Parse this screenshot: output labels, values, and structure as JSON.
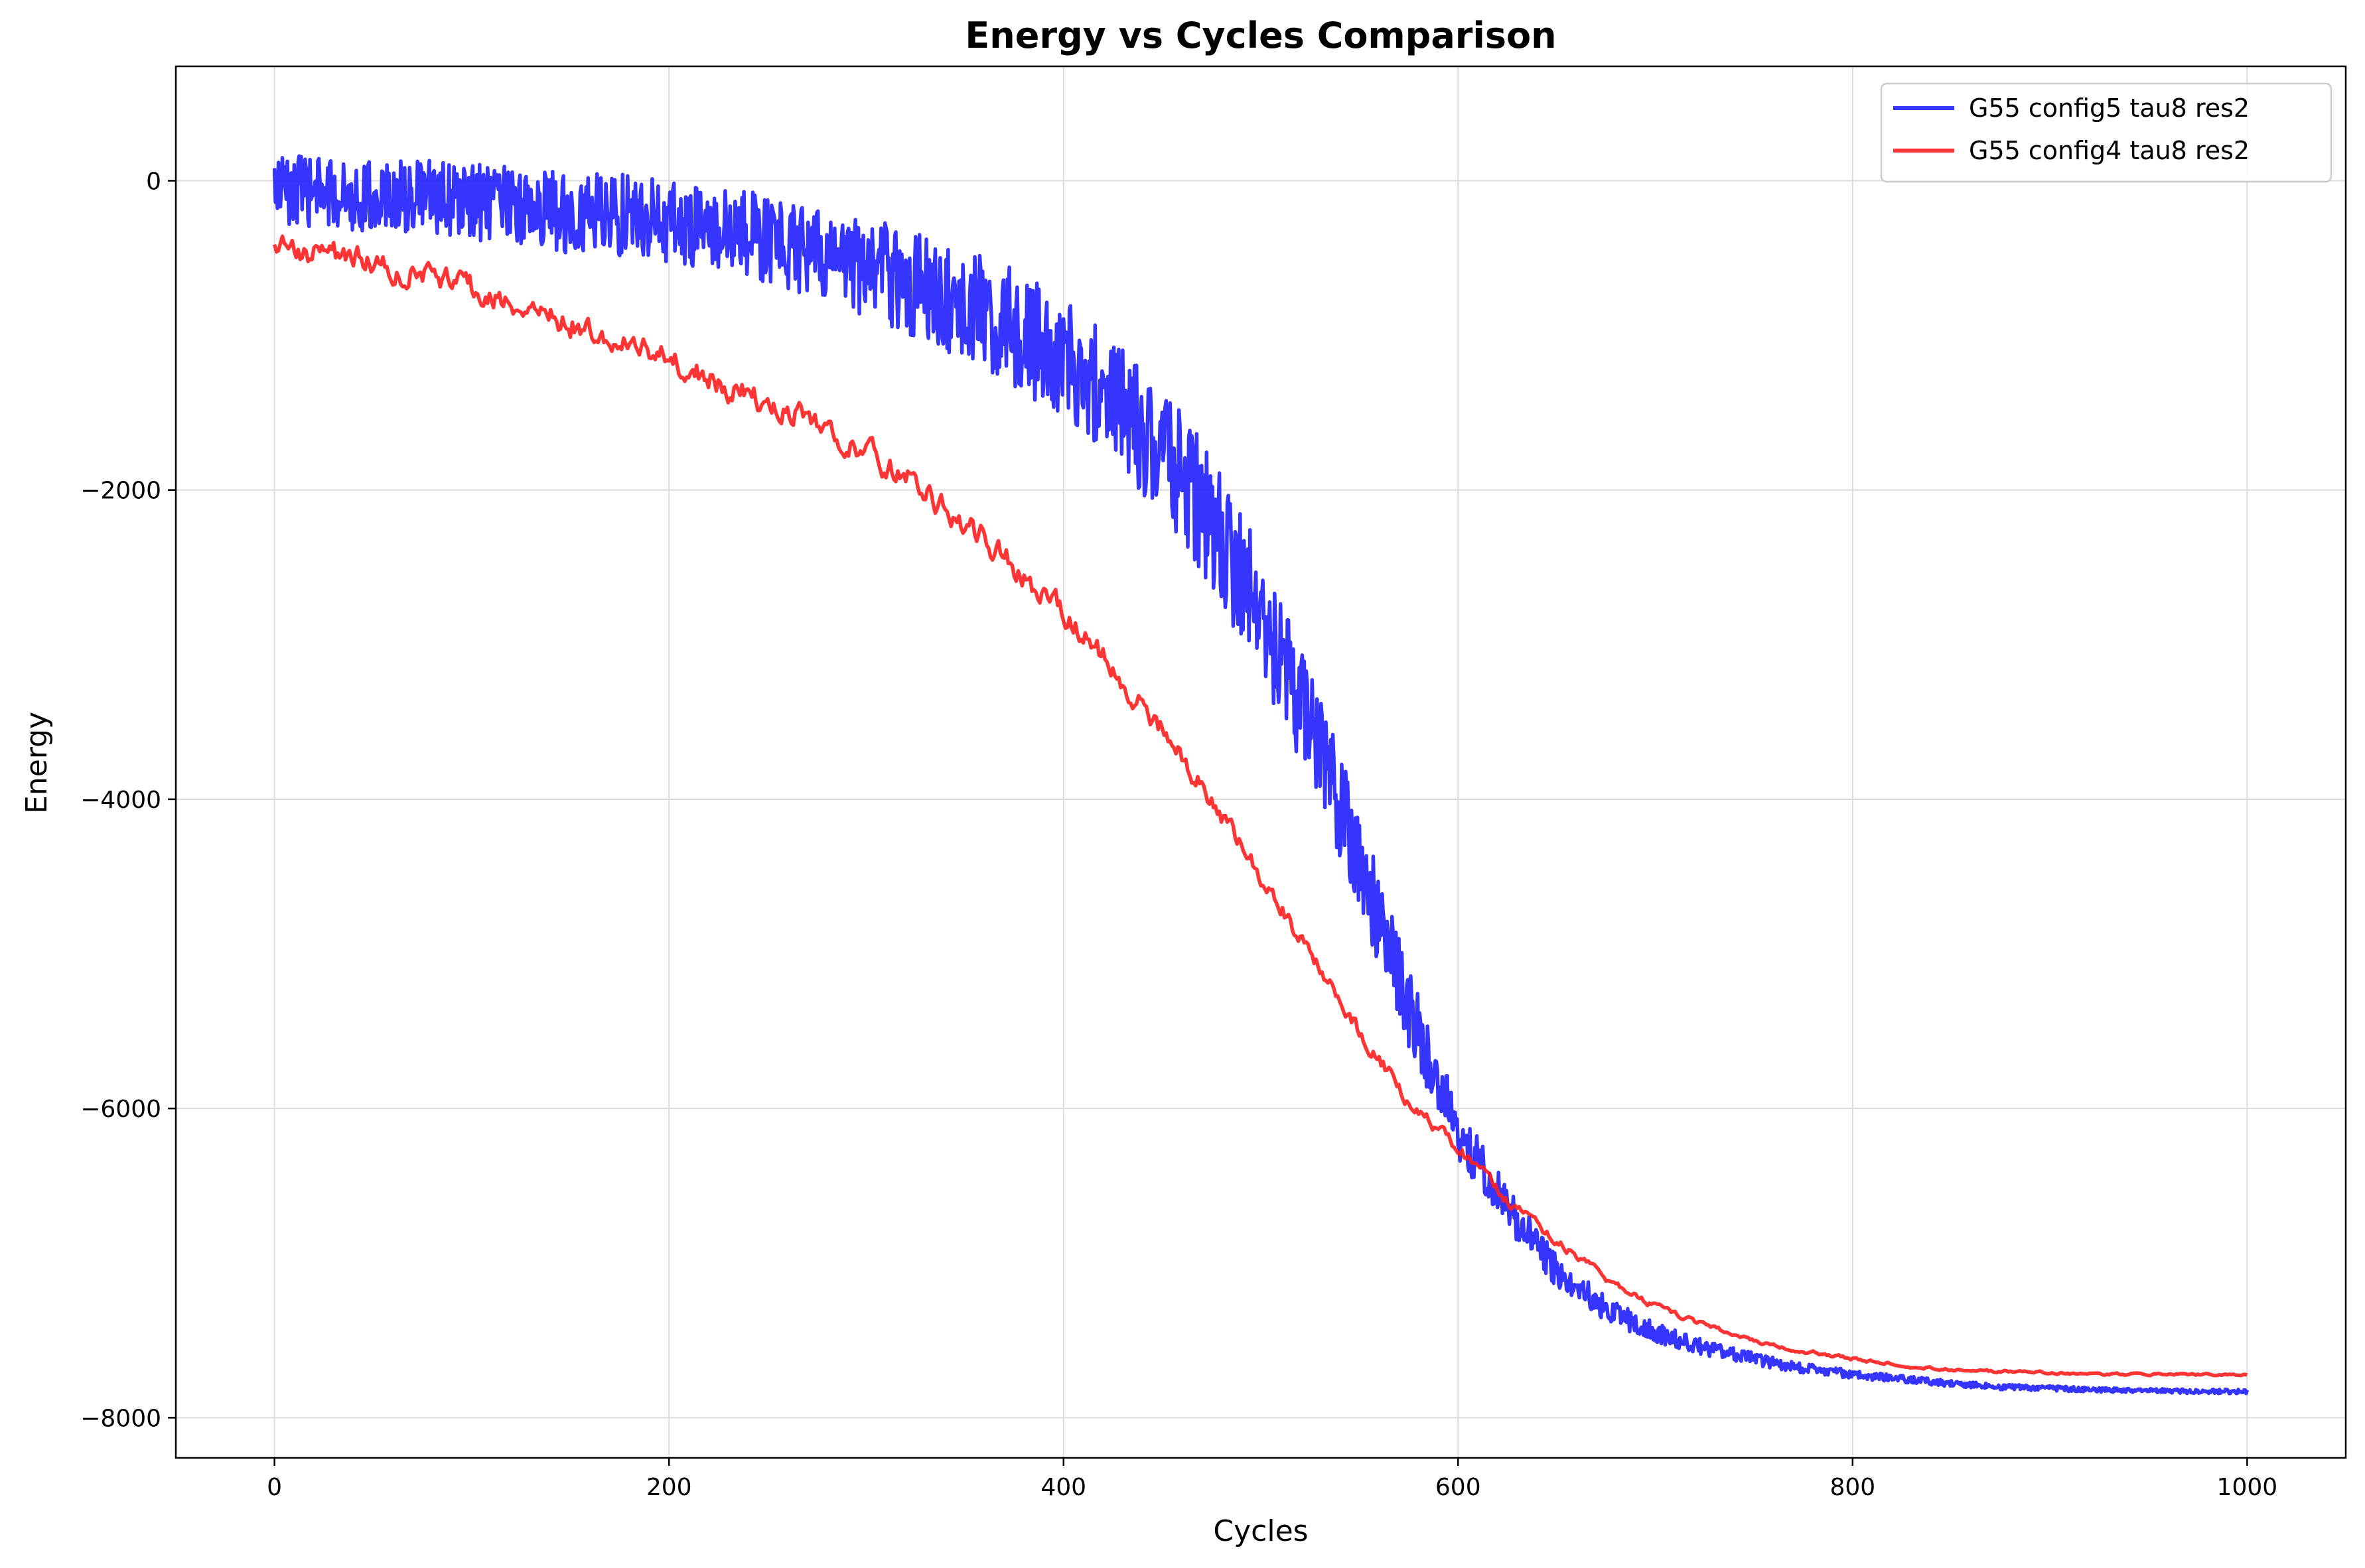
{
  "chart_data": {
    "type": "line",
    "title": "Energy vs Cycles Comparison",
    "xlabel": "Cycles",
    "ylabel": "Energy",
    "xlim": [
      -50,
      1050
    ],
    "ylim": [
      -8260,
      740
    ],
    "xticks": [
      0,
      200,
      400,
      600,
      800,
      1000
    ],
    "xtick_labels": [
      "0",
      "200",
      "400",
      "600",
      "800",
      "1000"
    ],
    "yticks": [
      0,
      -2000,
      -4000,
      -6000,
      -8000
    ],
    "ytick_labels": [
      "0",
      "−2000",
      "−4000",
      "−6000",
      "−8000"
    ],
    "grid": true,
    "legend_position": "top-right",
    "series": [
      {
        "name": "G55 config5 tau8 res2",
        "color": "#1f1fff",
        "noise": "high-frequency",
        "x": [
          0,
          25,
          50,
          75,
          100,
          125,
          150,
          175,
          200,
          225,
          250,
          275,
          300,
          325,
          350,
          375,
          400,
          425,
          450,
          475,
          500,
          525,
          550,
          575,
          600,
          625,
          650,
          675,
          700,
          725,
          750,
          775,
          800,
          825,
          850,
          875,
          900,
          925,
          950,
          975,
          1000
        ],
        "values": [
          -50,
          -80,
          -100,
          -110,
          -140,
          -170,
          -200,
          -220,
          -260,
          -320,
          -390,
          -470,
          -560,
          -670,
          -800,
          -950,
          -1150,
          -1400,
          -1750,
          -2200,
          -2800,
          -3500,
          -4400,
          -5350,
          -6150,
          -6650,
          -7050,
          -7300,
          -7450,
          -7550,
          -7620,
          -7680,
          -7720,
          -7750,
          -7780,
          -7800,
          -7810,
          -7820,
          -7825,
          -7830,
          -7830
        ],
        "noise_amp": [
          250,
          250,
          260,
          270,
          280,
          290,
          300,
          300,
          310,
          320,
          330,
          340,
          360,
          380,
          400,
          420,
          440,
          460,
          470,
          480,
          460,
          420,
          360,
          280,
          200,
          160,
          120,
          90,
          70,
          55,
          45,
          35,
          30,
          25,
          22,
          20,
          18,
          16,
          15,
          15,
          15
        ]
      },
      {
        "name": "G55 config4 tau8 res2",
        "color": "#ff1f1f",
        "noise": "low-frequency",
        "x": [
          0,
          25,
          50,
          75,
          100,
          125,
          150,
          175,
          200,
          225,
          250,
          275,
          300,
          325,
          350,
          375,
          400,
          425,
          450,
          475,
          500,
          525,
          550,
          575,
          600,
          625,
          650,
          675,
          700,
          725,
          750,
          775,
          800,
          825,
          850,
          875,
          900,
          925,
          950,
          975,
          1000
        ],
        "values": [
          -450,
          -480,
          -520,
          -600,
          -700,
          -820,
          -920,
          -1050,
          -1150,
          -1300,
          -1450,
          -1550,
          -1750,
          -1950,
          -2200,
          -2500,
          -2800,
          -3150,
          -3550,
          -4000,
          -4500,
          -5000,
          -5500,
          -5950,
          -6250,
          -6600,
          -6850,
          -7100,
          -7280,
          -7400,
          -7500,
          -7570,
          -7620,
          -7660,
          -7690,
          -7700,
          -7710,
          -7720,
          -7720,
          -7720,
          -7720
        ],
        "noise_amp": [
          150,
          150,
          150,
          150,
          150,
          150,
          150,
          150,
          150,
          150,
          150,
          150,
          150,
          150,
          150,
          150,
          150,
          140,
          130,
          120,
          110,
          100,
          90,
          80,
          70,
          60,
          50,
          40,
          35,
          30,
          25,
          22,
          20,
          18,
          16,
          15,
          14,
          13,
          12,
          12,
          12
        ]
      }
    ]
  }
}
